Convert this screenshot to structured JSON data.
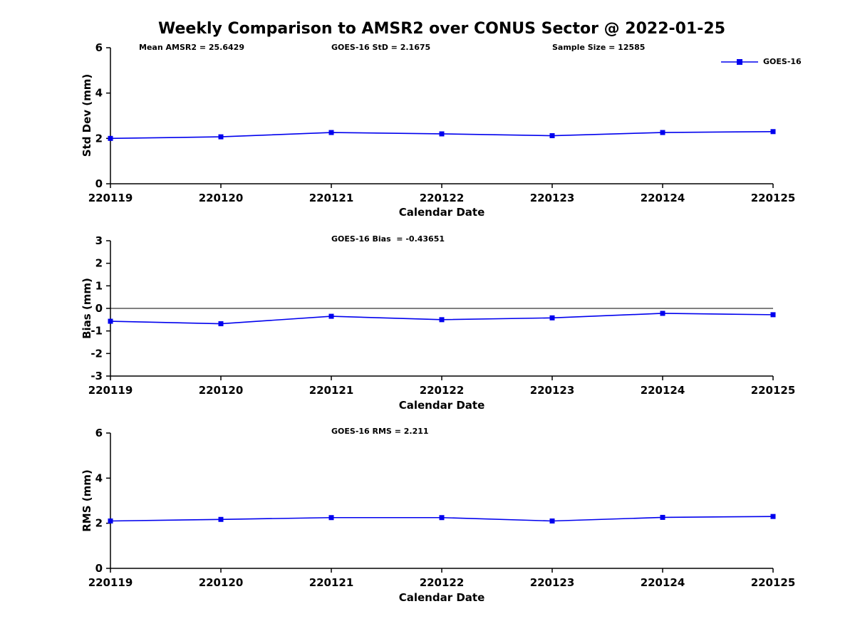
{
  "title": "Weekly Comparison to AMSR2 over CONUS Sector @ 2022-01-25",
  "colors": {
    "line": "#0000ee",
    "axis": "#000000"
  },
  "chart_data": [
    {
      "id": "std-dev",
      "type": "line",
      "annotations": [
        "Mean AMSR2 = 25.6429",
        "GOES-16 StD = 2.1675",
        "Sample Size = 12585"
      ],
      "categories": [
        "220119",
        "220120",
        "220121",
        "220122",
        "220123",
        "220124",
        "220125"
      ],
      "values": [
        2.0,
        2.07,
        2.26,
        2.2,
        2.12,
        2.26,
        2.3
      ],
      "xlabel": "Calendar Date",
      "ylabel": "Std Dev (mm)",
      "ylim": [
        0,
        6
      ],
      "yticks": [
        0,
        2,
        4,
        6
      ],
      "legend": "GOES-16",
      "legend_position": "top-right",
      "grid": false
    },
    {
      "id": "bias",
      "type": "line",
      "annotations": [
        "GOES-16 Bias  = -0.43651"
      ],
      "categories": [
        "220119",
        "220120",
        "220121",
        "220122",
        "220123",
        "220124",
        "220125"
      ],
      "values": [
        -0.57,
        -0.68,
        -0.35,
        -0.5,
        -0.42,
        -0.22,
        -0.28
      ],
      "xlabel": "Calendar Date",
      "ylabel": "Bias (mm)",
      "ylim": [
        -3,
        3
      ],
      "yticks": [
        -3,
        -2,
        -1,
        0,
        1,
        2,
        3
      ],
      "zero_line": true,
      "grid": false
    },
    {
      "id": "rms",
      "type": "line",
      "annotations": [
        "GOES-16 RMS = 2.211"
      ],
      "categories": [
        "220119",
        "220120",
        "220121",
        "220122",
        "220123",
        "220124",
        "220125"
      ],
      "values": [
        2.1,
        2.17,
        2.25,
        2.25,
        2.1,
        2.26,
        2.3
      ],
      "xlabel": "Calendar Date",
      "ylabel": "RMS (mm)",
      "ylim": [
        0,
        6
      ],
      "yticks": [
        0,
        2,
        4,
        6
      ],
      "grid": false
    }
  ]
}
